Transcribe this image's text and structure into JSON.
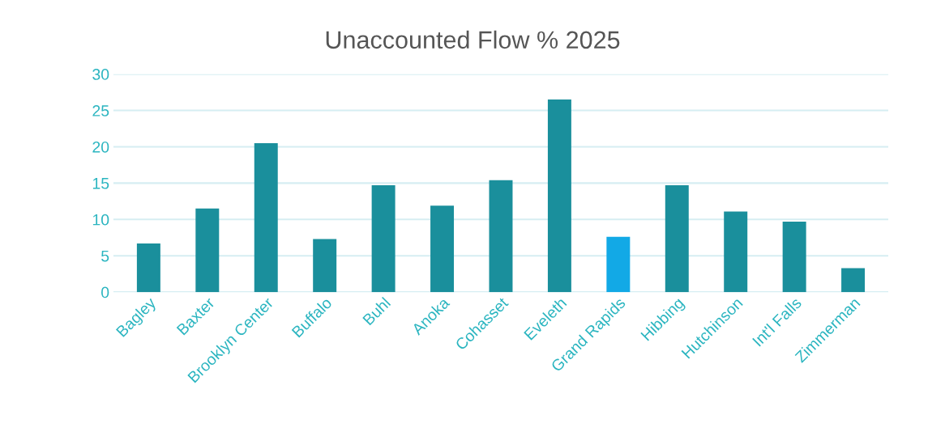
{
  "chart_data": {
    "type": "bar",
    "title": "Unaccounted Flow % 2025",
    "categories": [
      "Bagley",
      "Baxter",
      "Brooklyn Center",
      "Buffalo",
      "Buhl",
      "Anoka",
      "Cohasset",
      "Eveleth",
      "Grand Rapids",
      "Hibbing",
      "Hutchinson",
      "Int'l Falls",
      "Zimmerman"
    ],
    "values": [
      6.7,
      11.5,
      20.5,
      7.3,
      14.7,
      11.9,
      15.4,
      26.5,
      7.6,
      14.7,
      11.1,
      9.7,
      3.3
    ],
    "colors": [
      "#1a8f9c",
      "#1a8f9c",
      "#1a8f9c",
      "#1a8f9c",
      "#1a8f9c",
      "#1a8f9c",
      "#1a8f9c",
      "#1a8f9c",
      "#12a9e6",
      "#1a8f9c",
      "#1a8f9c",
      "#1a8f9c",
      "#1a8f9c"
    ],
    "ylim": [
      0,
      30
    ],
    "yticks": [
      0,
      5,
      10,
      15,
      20,
      25,
      30
    ],
    "grid": "y"
  }
}
